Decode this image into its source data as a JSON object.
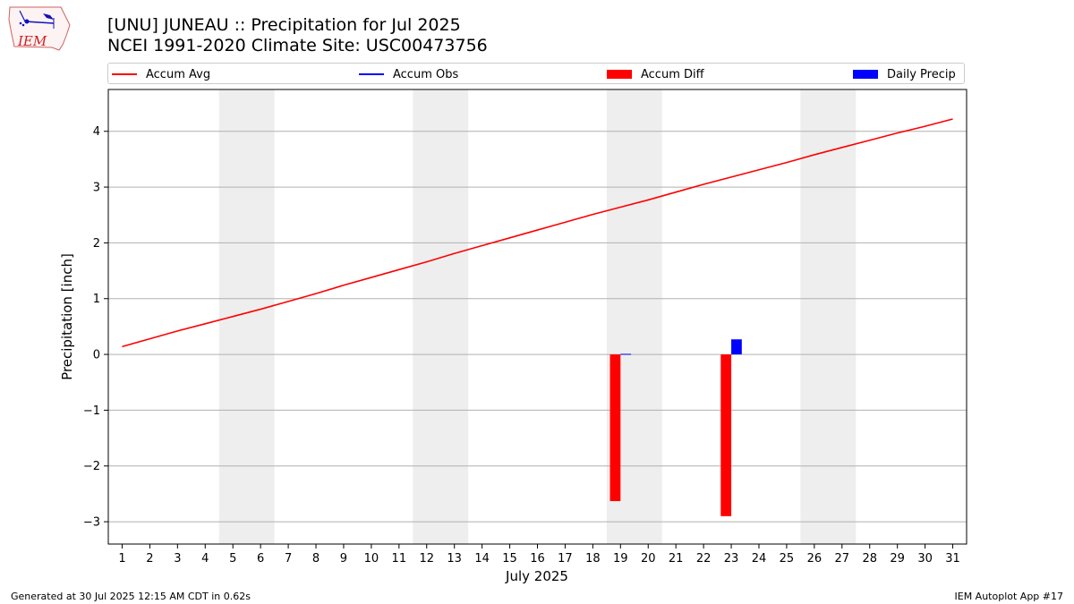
{
  "header": {
    "title_line1": "[UNU] JUNEAU :: Precipitation for Jul 2025",
    "title_line2": "NCEI 1991-2020 Climate Site: USC00473756",
    "logo_text": "IEM"
  },
  "footer": {
    "left": "Generated at 30 Jul 2025 12:15 AM CDT in 0.62s",
    "right": "IEM Autoplot App #17"
  },
  "legend": {
    "items": [
      {
        "label": "Accum Avg",
        "color": "#ff0000",
        "kind": "line"
      },
      {
        "label": "Accum Obs",
        "color": "#0000ff",
        "kind": "line"
      },
      {
        "label": "Accum Diff",
        "color": "#ff0000",
        "kind": "bar"
      },
      {
        "label": "Daily Precip",
        "color": "#0000ff",
        "kind": "bar"
      }
    ]
  },
  "chart_data": {
    "type": "bar",
    "title": "[UNU] JUNEAU :: Precipitation for Jul 2025",
    "subtitle": "NCEI 1991-2020 Climate Site: USC00473756",
    "xlabel": "July 2025",
    "ylabel": "Precipitation [inch]",
    "xlim": [
      0.5,
      31.5
    ],
    "ylim": [
      -3.4,
      4.75
    ],
    "x_ticks": [
      1,
      2,
      3,
      4,
      5,
      6,
      7,
      8,
      9,
      10,
      11,
      12,
      13,
      14,
      15,
      16,
      17,
      18,
      19,
      20,
      21,
      22,
      23,
      24,
      25,
      26,
      27,
      28,
      29,
      30,
      31
    ],
    "y_ticks": [
      -3,
      -2,
      -1,
      0,
      1,
      2,
      3,
      4
    ],
    "y_tick_labels": [
      "−3",
      "−2",
      "−1",
      "0",
      "1",
      "2",
      "3",
      "4"
    ],
    "grid": "y",
    "legend_position": "top",
    "weekend_shading": [
      [
        4.5,
        6.5
      ],
      [
        11.5,
        13.5
      ],
      [
        18.5,
        20.5
      ],
      [
        25.5,
        27.5
      ]
    ],
    "series": [
      {
        "name": "Accum Avg",
        "type": "line",
        "color": "#ff0000",
        "x": [
          1,
          2,
          3,
          4,
          5,
          6,
          7,
          8,
          9,
          10,
          11,
          12,
          13,
          14,
          15,
          16,
          17,
          18,
          19,
          20,
          21,
          22,
          23,
          24,
          25,
          26,
          27,
          28,
          29,
          30,
          31
        ],
        "values": [
          0.14,
          0.28,
          0.42,
          0.55,
          0.68,
          0.81,
          0.95,
          1.09,
          1.24,
          1.38,
          1.52,
          1.66,
          1.81,
          1.95,
          2.09,
          2.23,
          2.37,
          2.51,
          2.64,
          2.77,
          2.91,
          3.05,
          3.18,
          3.31,
          3.44,
          3.58,
          3.71,
          3.84,
          3.97,
          4.09,
          4.22
        ]
      },
      {
        "name": "Accum Obs",
        "type": "line",
        "color": "#0000ff",
        "x": [],
        "values": []
      },
      {
        "name": "Accum Diff",
        "type": "bar",
        "color": "#ff0000",
        "x": [
          19,
          23
        ],
        "values": [
          -2.63,
          -2.9
        ]
      },
      {
        "name": "Daily Precip",
        "type": "bar",
        "color": "#0000ff",
        "x": [
          19,
          23
        ],
        "values": [
          0.01,
          0.27
        ]
      }
    ]
  }
}
